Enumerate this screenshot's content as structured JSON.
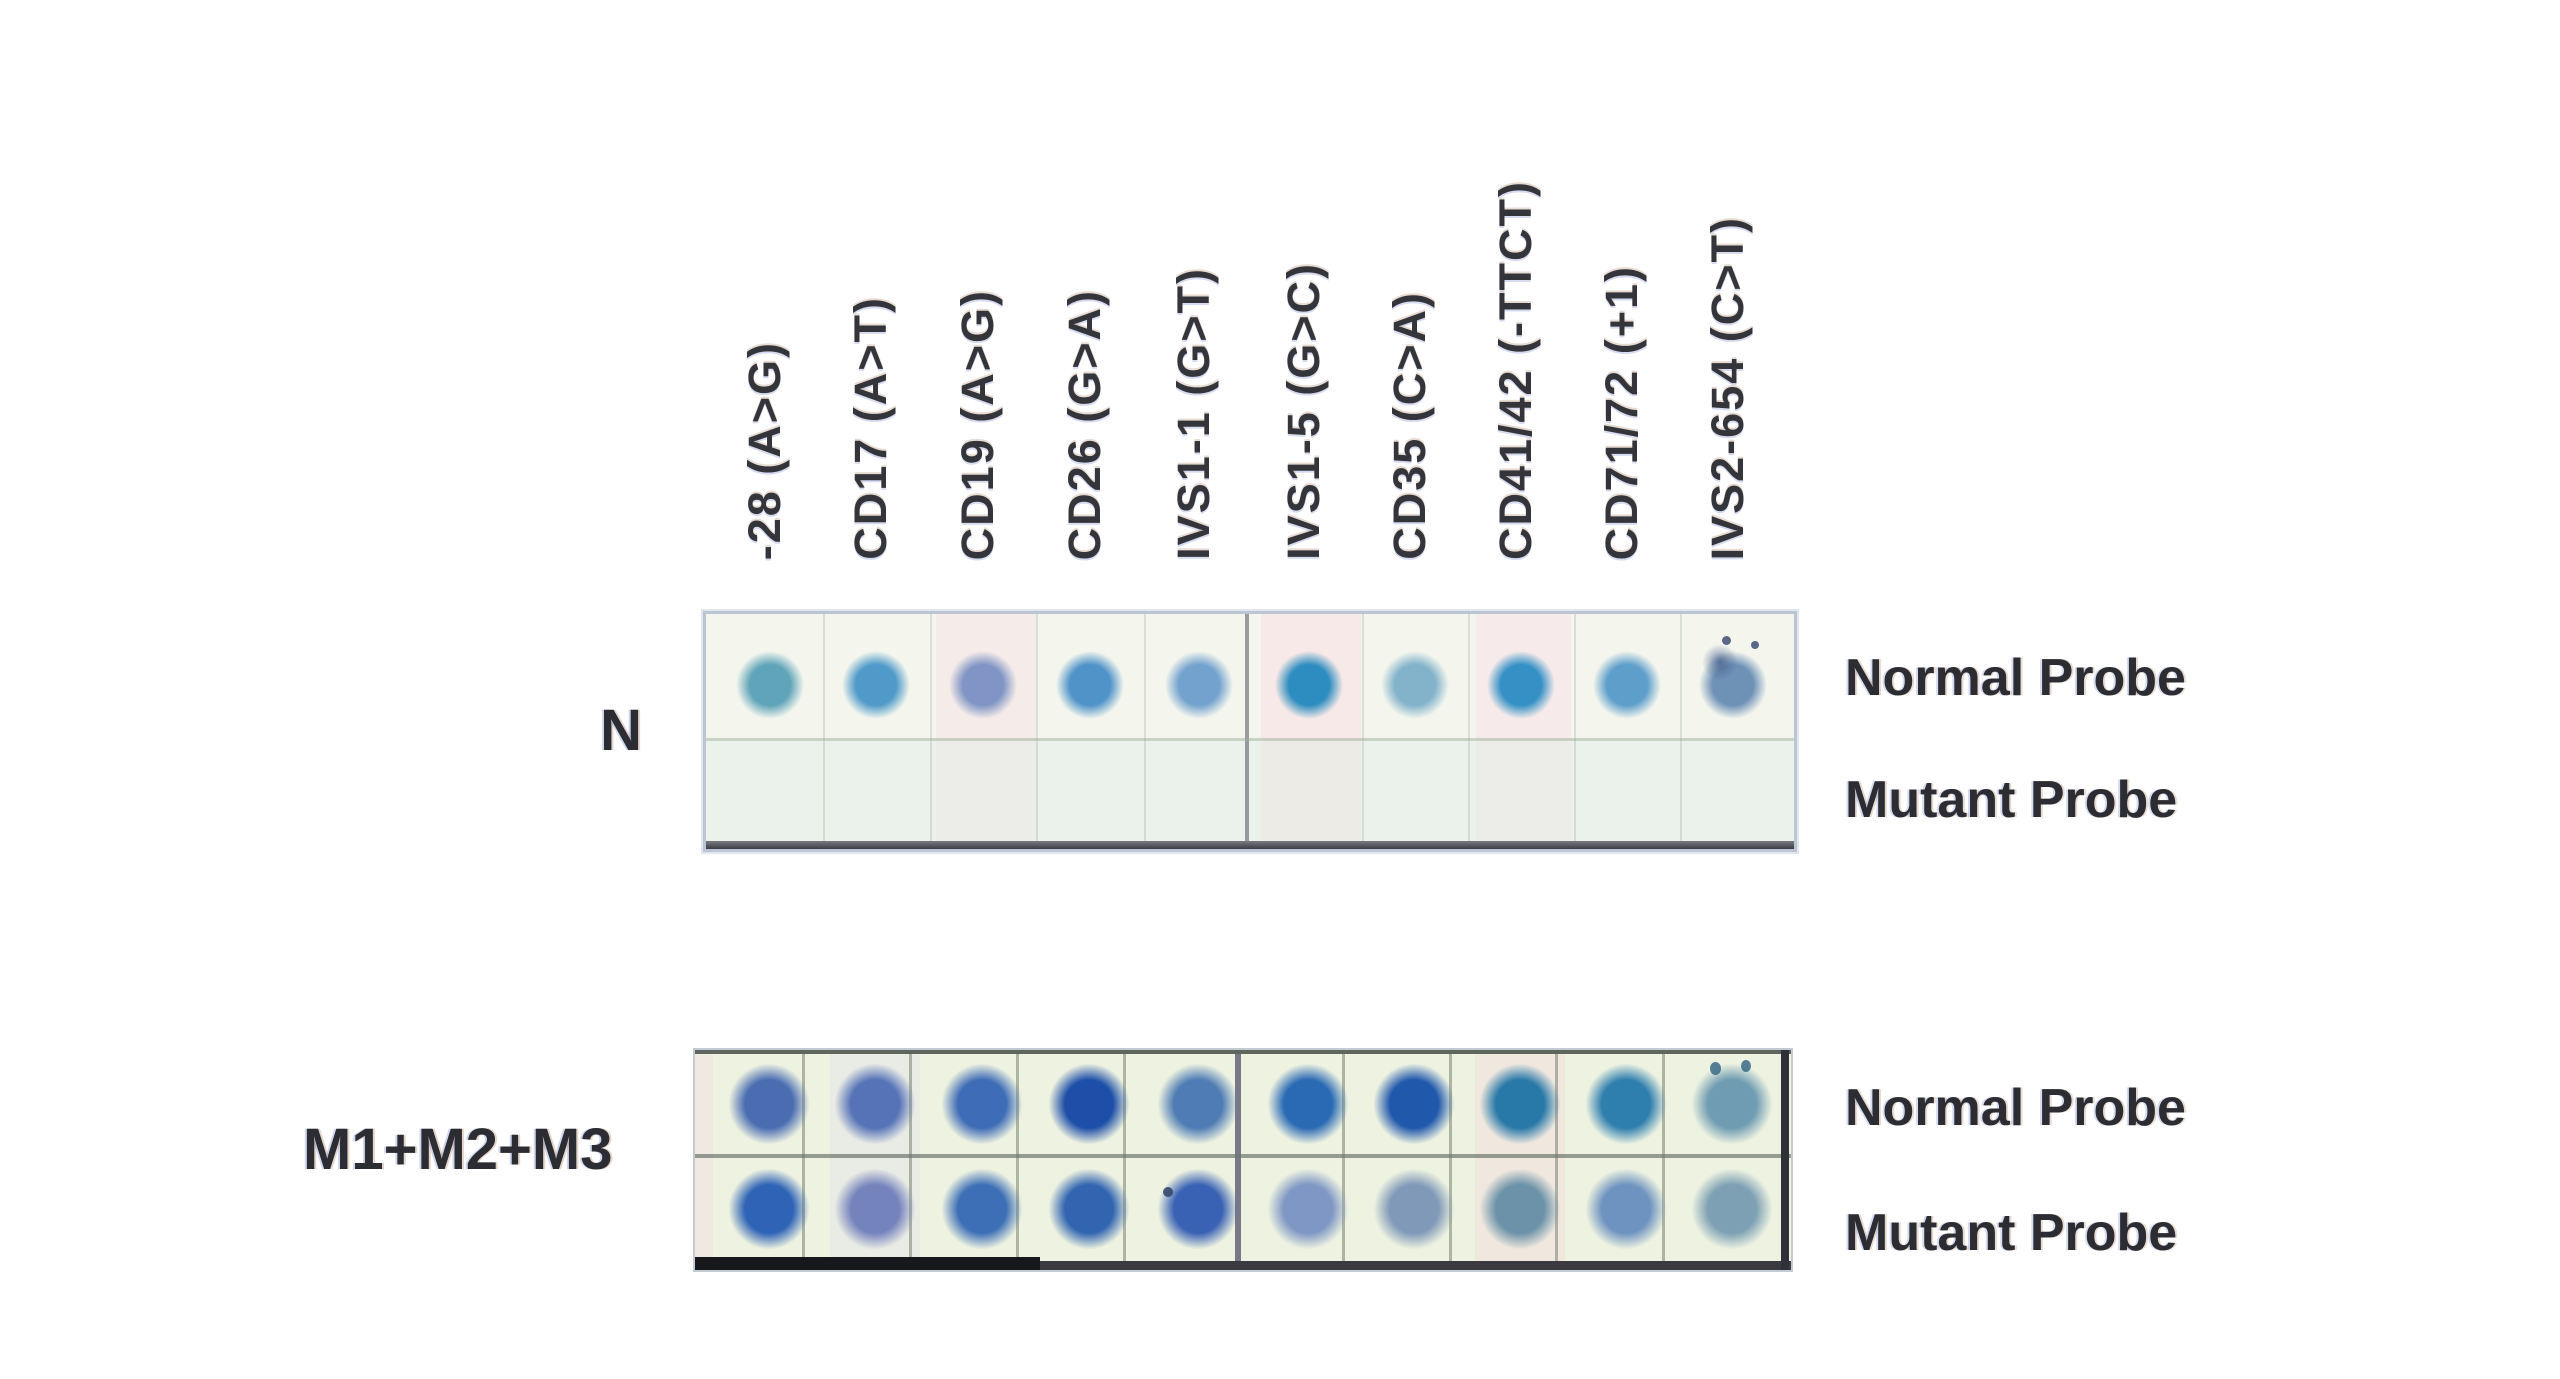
{
  "figure": {
    "columns": [
      "-28 (A>G)",
      "CD17 (A>T)",
      "CD19 (A>G)",
      "CD26 (G>A)",
      "IVS1-1 (G>T)",
      "IVS1-5 (G>C)",
      "CD35 (C>A)",
      "CD41/42 (-TTCT)",
      "CD71/72 (+1)",
      "IVS2-654 (C>T)"
    ],
    "probe_rows": {
      "normal": "Normal Probe",
      "mutant": "Mutant Probe"
    },
    "panels": [
      {
        "sample_label": "N",
        "normal_dots": [
          "#5fa4b8",
          "#4f9ac9",
          "#8095c5",
          "#4f93c8",
          "#73a2ce",
          "#2e8dc0",
          "#82b3ca",
          "#3590c5",
          "#5e9ecb",
          "#6e91b6"
        ],
        "mutant_dots": [
          null,
          null,
          null,
          null,
          null,
          null,
          null,
          null,
          null,
          null
        ]
      },
      {
        "sample_label": "M1+M2+M3",
        "normal_dots": [
          "#4a6db2",
          "#5673b8",
          "#3e6cb6",
          "#1e4fa8",
          "#4f7cb4",
          "#2a6ab4",
          "#2058ac",
          "#2878a8",
          "#2e7eae",
          "#6f9cb2"
        ],
        "mutant_dots": [
          "#2f63b6",
          "#7583bd",
          "#3d6fb6",
          "#3265b0",
          "#3a62b4",
          "#7e97c4",
          "#8099b8",
          "#6b92a8",
          "#6e93c0",
          "#7da0b4"
        ]
      }
    ]
  }
}
